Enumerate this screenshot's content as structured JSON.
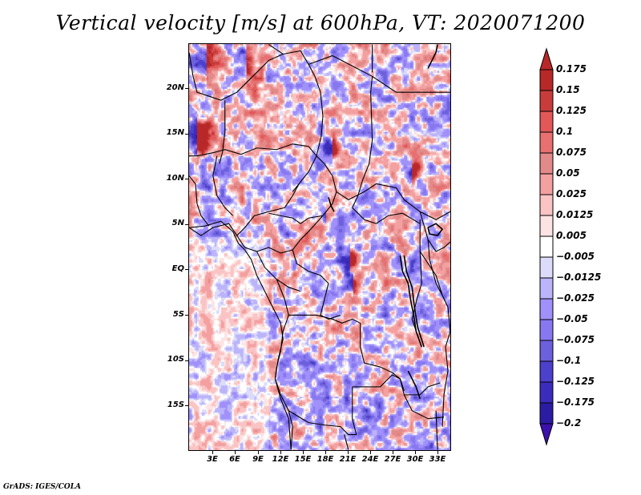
{
  "chart_data": {
    "type": "heatmap",
    "title": "Vertical velocity [m/s] at 600hPa, VT: 2020071200",
    "variable": "Vertical velocity",
    "units": "m/s",
    "level": "600hPa",
    "valid_time": "2020071200",
    "xlabel": "",
    "ylabel": "",
    "x_ticks": [
      "3E",
      "6E",
      "9E",
      "12E",
      "15E",
      "18E",
      "21E",
      "24E",
      "27E",
      "30E",
      "33E"
    ],
    "x_tick_values": [
      3,
      6,
      9,
      12,
      15,
      18,
      21,
      24,
      27,
      30,
      33
    ],
    "y_ticks": [
      "20N",
      "15N",
      "10N",
      "5N",
      "EQ",
      "5S",
      "10S",
      "15S"
    ],
    "y_tick_values": [
      20,
      15,
      10,
      5,
      0,
      -5,
      -10,
      -15
    ],
    "xlim": [
      0.5,
      35.5
    ],
    "ylim": [
      -20.5,
      24.5
    ],
    "colorbar": {
      "levels": [
        0.175,
        0.15,
        0.125,
        0.1,
        0.075,
        0.05,
        0.025,
        0.0125,
        0.005,
        -0.005,
        -0.0125,
        -0.025,
        -0.05,
        -0.075,
        -0.1,
        -0.125,
        -0.175,
        -0.2
      ],
      "labels": [
        "0.175",
        "0.15",
        "0.125",
        "0.1",
        "0.075",
        "0.05",
        "0.025",
        "0.0125",
        "0.005",
        "−0.005",
        "−0.0125",
        "−0.025",
        "−0.05",
        "−0.075",
        "−0.1",
        "−0.125",
        "−0.175",
        "−0.2"
      ],
      "colors": [
        "#b82828",
        "#c83c3c",
        "#e25858",
        "#e87070",
        "#e28a8a",
        "#f4a0a0",
        "#fac4c4",
        "#fde4e4",
        "#ffffff",
        "#dcdcfa",
        "#bcb4fa",
        "#a090fa",
        "#8878f0",
        "#6c60dc",
        "#4c40cc",
        "#3c2cbc",
        "#2c1ca4"
      ],
      "over_color": "#b82828",
      "under_color": "#3c10ac",
      "extend": "both",
      "orientation": "vertical",
      "placement": "right"
    },
    "description": "Gridded vertical velocity field over Central Africa; noisy alternating positive (red) and negative (blue) cells, strongest ascent/descent couplets near 8-12N and near the equator, overlaid with country boundaries and coastlines."
  },
  "footer": "GrADS: IGES/COLA"
}
